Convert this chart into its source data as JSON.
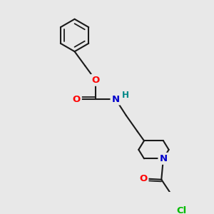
{
  "bg_color": "#e8e8e8",
  "bond_color": "#1a1a1a",
  "bond_width": 1.5,
  "atom_colors": {
    "O": "#ff0000",
    "N": "#0000cc",
    "Cl": "#00bb00",
    "H": "#008888",
    "C": "#1a1a1a"
  },
  "font_size": 9.5,
  "fig_size": [
    3.0,
    3.0
  ],
  "dpi": 100,
  "xlim": [
    0,
    10
  ],
  "ylim": [
    0,
    10
  ]
}
